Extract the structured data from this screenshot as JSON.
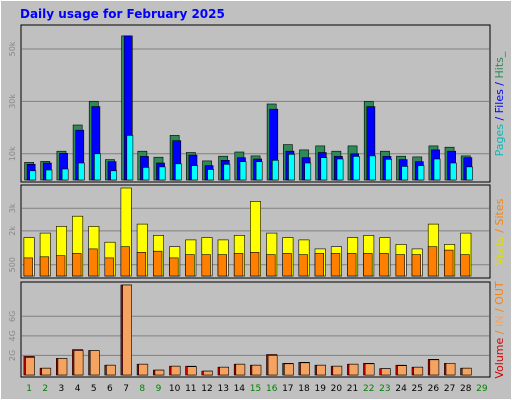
{
  "chart_data": {
    "type": "bar",
    "title": "Daily usage for February 2025",
    "days": [
      "1",
      "2",
      "3",
      "4",
      "5",
      "6",
      "7",
      "8",
      "9",
      "10",
      "11",
      "12",
      "13",
      "14",
      "15",
      "16",
      "17",
      "18",
      "19",
      "20",
      "21",
      "22",
      "23",
      "24",
      "25",
      "26",
      "27",
      "28",
      "29"
    ],
    "weekend_days": [
      "1",
      "2",
      "8",
      "9",
      "15",
      "16",
      "22",
      "23",
      "29"
    ],
    "colors": {
      "hits": "#2e8b57",
      "files": "#0000ff",
      "pages": "#00ffff",
      "visits": "#ffff00",
      "sites": "#ff8000",
      "volume": "#d00000",
      "volume_alt": "#f4a460",
      "weekday_label": "#000000",
      "weekend_label": "#008000"
    },
    "panels": [
      {
        "name": "hits-files-pages",
        "ylim": [
          0,
          58000
        ],
        "yticks": [
          {
            "label": "10k",
            "value": 10000
          },
          {
            "label": "30k",
            "value": 30000
          },
          {
            "label": "50k",
            "value": 50000
          }
        ],
        "right_label": [
          {
            "text": "Pages",
            "color": "#00bbbb"
          },
          {
            "text": " / ",
            "color": "#0000ff"
          },
          {
            "text": "Files",
            "color": "#0000ff"
          },
          {
            "text": " / ",
            "color": "#0000ff"
          },
          {
            "text": "Hits_",
            "color": "#2e8b57"
          }
        ],
        "series": [
          {
            "name": "Hits",
            "color": "#2e8b57",
            "values": [
              6700,
              7100,
              11000,
              21000,
              30000,
              7800,
              55000,
              11000,
              8700,
              17000,
              10500,
              7300,
              9100,
              10700,
              9200,
              29000,
              13500,
              11500,
              13000,
              11000,
              13000,
              30000,
              11000,
              9100,
              8800,
              13000,
              12500,
              9200,
              0
            ]
          },
          {
            "name": "Files",
            "color": "#0000ff",
            "values": [
              6000,
              6500,
              10200,
              19000,
              28000,
              7000,
              55000,
              9000,
              6500,
              15000,
              9500,
              5500,
              7500,
              8500,
              8000,
              27000,
              11000,
              8500,
              10500,
              9000,
              10000,
              28000,
              9000,
              7800,
              7000,
              11500,
              11000,
              8500,
              0
            ]
          },
          {
            "name": "Pages",
            "color": "#00ffff",
            "values": [
              3500,
              3800,
              4200,
              6500,
              10000,
              3500,
              17000,
              4800,
              5000,
              6200,
              5500,
              4000,
              6000,
              7000,
              7000,
              7500,
              9800,
              6500,
              8500,
              8000,
              9000,
              9200,
              7900,
              5200,
              5500,
              8000,
              6500,
              5000,
              0
            ]
          }
        ]
      },
      {
        "name": "visits-sites",
        "ylim": [
          0,
          3900
        ],
        "yticks": [
          {
            "label": "500",
            "value": 500
          },
          {
            "label": "2k",
            "value": 2000
          },
          {
            "label": "3k",
            "value": 3000
          }
        ],
        "right_label": [
          {
            "text": "Visits",
            "color": "#dddd00"
          },
          {
            "text": " / ",
            "color": "#ff8000"
          },
          {
            "text": "Sites",
            "color": "#ff8000"
          }
        ],
        "series": [
          {
            "name": "Visits",
            "color": "#ffff00",
            "values": [
              1700,
              1900,
              2200,
              2650,
              2200,
              1500,
              3900,
              2300,
              1800,
              1300,
              1600,
              1700,
              1600,
              1800,
              3300,
              1900,
              1700,
              1600,
              1200,
              1300,
              1700,
              1800,
              1700,
              1400,
              1200,
              2300,
              1400,
              1900,
              0
            ]
          },
          {
            "name": "Sites",
            "color": "#ff8000",
            "values": [
              800,
              850,
              900,
              1000,
              1200,
              800,
              1300,
              1050,
              1100,
              800,
              950,
              950,
              950,
              1000,
              1050,
              950,
              1000,
              950,
              1000,
              1000,
              1000,
              1000,
              1000,
              950,
              950,
              1300,
              1150,
              950,
              0
            ]
          }
        ]
      },
      {
        "name": "volume",
        "ylim": [
          0,
          9200
        ],
        "yticks": [
          {
            "label": "2G",
            "value": 2000
          },
          {
            "label": "4G",
            "value": 4000
          },
          {
            "label": "6G",
            "value": 6000
          }
        ],
        "right_label": [
          {
            "text": "Volume",
            "color": "#d00000"
          },
          {
            "text": " / ",
            "color": "#ff8000"
          },
          {
            "text": "IN",
            "color": "#f4a460"
          },
          {
            "text": " / ",
            "color": "#ff8000"
          },
          {
            "text": "OUT",
            "color": "#ff8000"
          }
        ],
        "series": [
          {
            "name": "Volume",
            "color": "#d00000",
            "values": [
              1900,
              700,
              1700,
              2600,
              2500,
              1000,
              9200,
              1100,
              500,
              900,
              900,
              400,
              800,
              1100,
              1000,
              2100,
              1200,
              1300,
              1000,
              900,
              1100,
              1200,
              650,
              1000,
              800,
              1600,
              1200,
              700,
              0
            ]
          },
          {
            "name": "Out",
            "color": "#f4a460",
            "values": [
              1800,
              700,
              1700,
              2500,
              2500,
              1000,
              9200,
              1100,
              500,
              900,
              850,
              400,
              800,
              1100,
              1000,
              2000,
              1150,
              1250,
              1000,
              900,
              1100,
              1150,
              650,
              950,
              800,
              1550,
              1200,
              700,
              0
            ]
          }
        ]
      }
    ]
  }
}
